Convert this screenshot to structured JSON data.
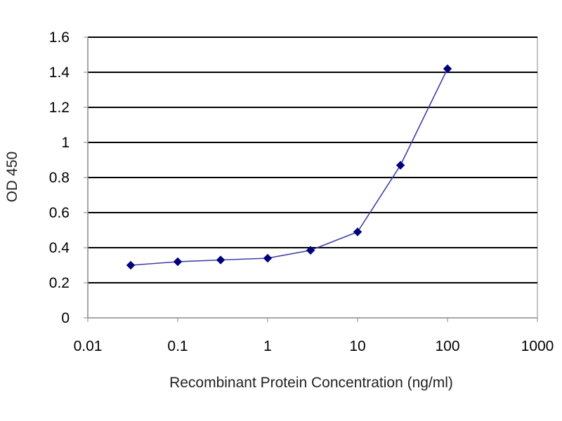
{
  "chart_data": {
    "type": "line",
    "title": "",
    "xlabel": "Recombinant Protein Concentration (ng/ml)",
    "ylabel": "OD 450",
    "x_scale": "log",
    "xlim": [
      0.01,
      1000
    ],
    "ylim": [
      0,
      1.6
    ],
    "x_ticks": [
      "0.01",
      "0.1",
      "1",
      "10",
      "100",
      "1000"
    ],
    "y_ticks": [
      "0",
      "0.2",
      "0.4",
      "0.6",
      "0.8",
      "1",
      "1.2",
      "1.4",
      "1.6"
    ],
    "grid": "horizontal",
    "legend": "none",
    "series": [
      {
        "x": [
          0.03,
          0.1,
          0.3,
          1,
          3,
          10,
          30,
          100
        ],
        "y": [
          0.3,
          0.32,
          0.33,
          0.34,
          0.385,
          0.49,
          0.87,
          1.42
        ]
      }
    ],
    "colors": {
      "line": "#3f3fa8",
      "marker": "#00007a",
      "grid": "#000000",
      "axis": "#888888",
      "plot_background": "#ffffff"
    }
  }
}
